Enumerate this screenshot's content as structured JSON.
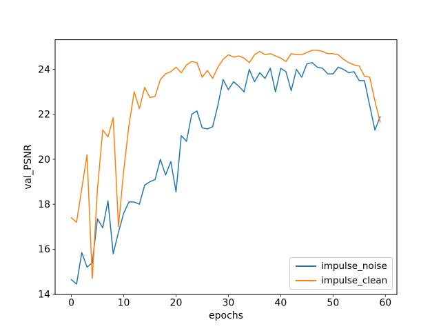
{
  "chart_data": {
    "type": "line",
    "title": "",
    "xlabel": "epochs",
    "ylabel": "val_PSNR",
    "xlim": [
      -3.1,
      62.2
    ],
    "ylim": [
      13.98,
      25.32
    ],
    "xticks": [
      0,
      10,
      20,
      30,
      40,
      50,
      60
    ],
    "yticks": [
      14,
      16,
      18,
      20,
      22,
      24
    ],
    "grid": false,
    "legend_position": "lower right",
    "x": [
      0,
      1,
      2,
      3,
      4,
      5,
      6,
      7,
      8,
      9,
      10,
      11,
      12,
      13,
      14,
      15,
      16,
      17,
      18,
      19,
      20,
      21,
      22,
      23,
      24,
      25,
      26,
      27,
      28,
      29,
      30,
      31,
      32,
      33,
      34,
      35,
      36,
      37,
      38,
      39,
      40,
      41,
      42,
      43,
      44,
      45,
      46,
      47,
      48,
      49,
      50,
      51,
      52,
      53,
      54,
      55,
      56,
      57,
      58,
      59
    ],
    "series": [
      {
        "name": "impulse_noise",
        "color": "#1f77b4",
        "values": [
          14.65,
          14.45,
          15.85,
          15.2,
          15.4,
          17.35,
          16.95,
          18.15,
          15.8,
          16.75,
          17.6,
          18.1,
          18.1,
          18.0,
          18.85,
          19.0,
          19.1,
          20.0,
          19.3,
          19.9,
          18.55,
          21.05,
          20.8,
          22.0,
          22.15,
          21.4,
          21.35,
          21.45,
          22.4,
          23.55,
          23.1,
          23.45,
          23.25,
          23.0,
          24.0,
          23.45,
          23.85,
          23.6,
          24.05,
          23.0,
          24.05,
          23.9,
          23.05,
          24.0,
          23.65,
          24.25,
          24.3,
          24.1,
          24.05,
          23.8,
          23.8,
          24.1,
          24.0,
          23.85,
          23.9,
          23.5,
          23.5,
          22.4,
          21.3,
          21.9
        ]
      },
      {
        "name": "impulse_clean",
        "color": "#ff7f0e",
        "values": [
          17.4,
          17.2,
          18.7,
          20.2,
          14.7,
          18.7,
          21.3,
          21.0,
          21.85,
          17.0,
          19.5,
          21.5,
          23.0,
          22.25,
          23.2,
          22.75,
          22.8,
          23.55,
          23.8,
          23.9,
          24.1,
          23.85,
          24.2,
          24.35,
          24.3,
          23.65,
          23.95,
          23.6,
          24.1,
          24.45,
          24.65,
          24.55,
          24.6,
          24.5,
          24.3,
          24.65,
          24.8,
          24.65,
          24.7,
          24.6,
          24.5,
          24.35,
          24.7,
          24.65,
          24.65,
          24.75,
          24.85,
          24.85,
          24.8,
          24.7,
          24.7,
          24.65,
          24.45,
          24.3,
          24.2,
          24.15,
          23.7,
          23.65,
          22.6,
          21.65
        ]
      }
    ]
  }
}
